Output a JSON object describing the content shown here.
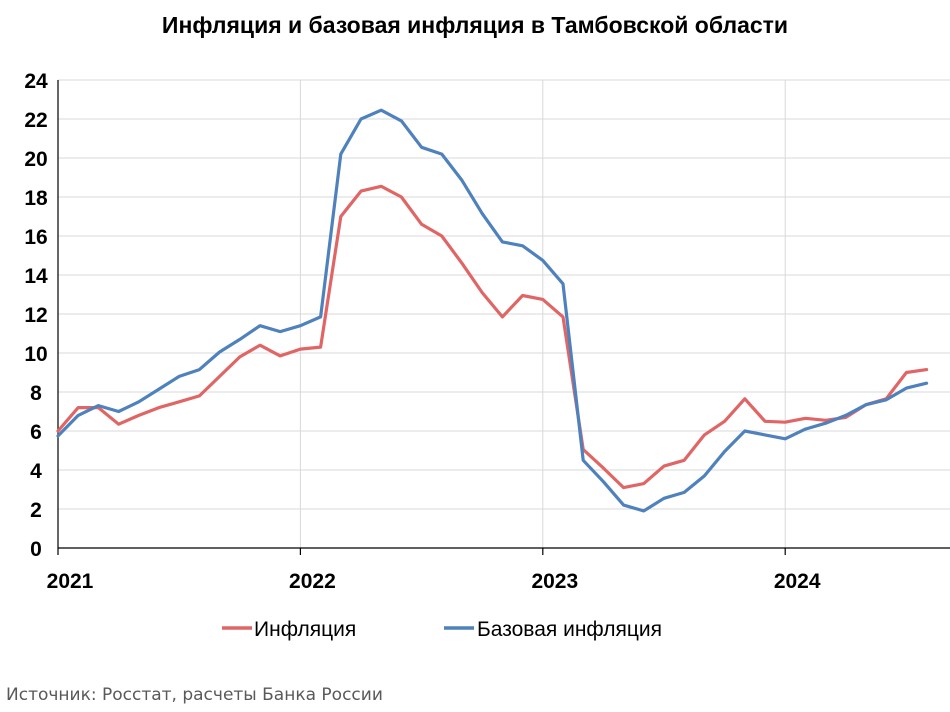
{
  "chart_data": {
    "type": "line",
    "title": "Инфляция и базовая инфляция в Тамбовской области",
    "xlabel": "",
    "ylabel": "",
    "ylim": [
      0,
      24
    ],
    "yticks": [
      0,
      2,
      4,
      6,
      8,
      10,
      12,
      14,
      16,
      18,
      20,
      22,
      24
    ],
    "xticks": [
      "2021",
      "2022",
      "2023",
      "2024"
    ],
    "grid": true,
    "legend_position": "bottom",
    "x": [
      "2021-01",
      "2021-02",
      "2021-03",
      "2021-04",
      "2021-05",
      "2021-06",
      "2021-07",
      "2021-08",
      "2021-09",
      "2021-10",
      "2021-11",
      "2021-12",
      "2022-01",
      "2022-02",
      "2022-03",
      "2022-04",
      "2022-05",
      "2022-06",
      "2022-07",
      "2022-08",
      "2022-09",
      "2022-10",
      "2022-11",
      "2022-12",
      "2023-01",
      "2023-02",
      "2023-03",
      "2023-04",
      "2023-05",
      "2023-06",
      "2023-07",
      "2023-08",
      "2023-09",
      "2023-10",
      "2023-11",
      "2023-12",
      "2024-01",
      "2024-02",
      "2024-03",
      "2024-04",
      "2024-05",
      "2024-06",
      "2024-07",
      "2024-08"
    ],
    "series": [
      {
        "name": "Инфляция",
        "color": "#E06666",
        "values": [
          6.0,
          7.2,
          7.2,
          6.35,
          6.8,
          7.2,
          7.5,
          7.8,
          8.8,
          9.8,
          10.4,
          9.85,
          10.2,
          10.3,
          17.0,
          18.3,
          18.55,
          18.0,
          16.6,
          16.0,
          14.6,
          13.1,
          11.85,
          12.95,
          12.75,
          11.85,
          5.05,
          4.1,
          3.1,
          3.3,
          4.2,
          4.5,
          5.8,
          6.5,
          7.65,
          6.5,
          6.45,
          6.65,
          6.55,
          6.7,
          7.35,
          7.65,
          9.0,
          9.15
        ]
      },
      {
        "name": "Базовая инфляция",
        "color": "#4F81BD",
        "values": [
          5.75,
          6.8,
          7.3,
          7.0,
          7.5,
          8.15,
          8.8,
          9.15,
          10.05,
          10.7,
          11.4,
          11.1,
          11.4,
          11.85,
          20.2,
          22.0,
          22.45,
          21.9,
          20.55,
          20.2,
          18.85,
          17.15,
          15.7,
          15.5,
          14.75,
          13.55,
          4.5,
          3.4,
          2.2,
          1.9,
          2.55,
          2.85,
          3.7,
          4.95,
          6.0,
          5.8,
          5.6,
          6.1,
          6.4,
          6.8,
          7.35,
          7.6,
          8.2,
          8.45
        ]
      }
    ]
  },
  "source": "Источник: Росстат, расчеты Банка России"
}
